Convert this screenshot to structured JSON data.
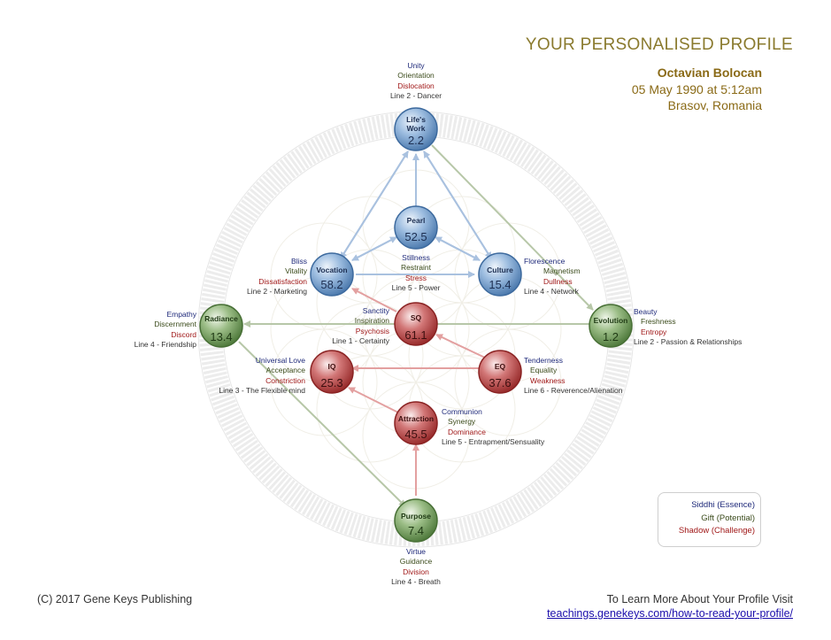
{
  "header": {
    "title": "YOUR PERSONALISED PROFILE",
    "name": "Octavian Bolocan",
    "birth": "05 May 1990 at 5:12am",
    "place": "Brasov, Romania"
  },
  "spheres": {
    "lifes_work": {
      "label": "Life's Work",
      "label_l1": "Life's",
      "label_l2": "Work",
      "value": "2.2",
      "color": "blue"
    },
    "pearl": {
      "label": "Pearl",
      "value": "52.5",
      "color": "blue"
    },
    "vocation": {
      "label": "Vocation",
      "value": "58.2",
      "color": "blue"
    },
    "culture": {
      "label": "Culture",
      "value": "15.4",
      "color": "blue"
    },
    "radiance": {
      "label": "Radiance",
      "value": "13.4",
      "color": "green"
    },
    "evolution": {
      "label": "Evolution",
      "value": "1.2",
      "color": "green"
    },
    "sq": {
      "label": "SQ",
      "value": "61.1",
      "color": "red"
    },
    "iq": {
      "label": "IQ",
      "value": "25.3",
      "color": "red"
    },
    "eq": {
      "label": "EQ",
      "value": "37.6",
      "color": "red"
    },
    "attraction": {
      "label": "Attraction",
      "value": "45.5",
      "color": "red"
    },
    "purpose": {
      "label": "Purpose",
      "value": "7.4",
      "color": "green"
    }
  },
  "labels": {
    "lifes_work": {
      "siddhi": "Unity",
      "gift": "Orientation",
      "shadow": "Dislocation",
      "line": "Line 2 - Dancer"
    },
    "pearl": {
      "siddhi": "Stillness",
      "gift": "Restraint",
      "shadow": "Stress",
      "line": "Line 5 - Power"
    },
    "vocation": {
      "siddhi": "Bliss",
      "gift": "Vitality",
      "shadow": "Dissatisfaction",
      "line": "Line 2 - Marketing"
    },
    "culture": {
      "siddhi": "Florescence",
      "gift": "Magnetism",
      "shadow": "Dullness",
      "line": "Line 4 - Network"
    },
    "radiance": {
      "siddhi": "Empathy",
      "gift": "Discernment",
      "shadow": "Discord",
      "line": "Line 4 - Friendship"
    },
    "evolution": {
      "siddhi": "Beauty",
      "gift": "Freshness",
      "shadow": "Entropy",
      "line": "Line 2 - Passion & Relationships"
    },
    "sq": {
      "siddhi": "Sanctity",
      "gift": "Inspiration",
      "shadow": "Psychosis",
      "line": "Line 1 - Certainty"
    },
    "iq": {
      "siddhi": "Universal Love",
      "gift": "Acceptance",
      "shadow": "Constriction",
      "line": "Line 3 - The Flexible mind"
    },
    "eq": {
      "siddhi": "Tenderness",
      "gift": "Equality",
      "shadow": "Weakness",
      "line": "Line 6 - Reverence/Alienation"
    },
    "attraction": {
      "siddhi": "Communion",
      "gift": "Synergy",
      "shadow": "Dominance",
      "line": "Line 5 - Entrapment/Sensuality"
    },
    "purpose": {
      "siddhi": "Virtue",
      "gift": "Guidance",
      "shadow": "Division",
      "line": "Line 4 - Breath"
    }
  },
  "legend": {
    "siddhi": "Siddhi (Essence)",
    "gift": "Gift (Potential)",
    "shadow": "Shadow (Challenge)"
  },
  "colors": {
    "siddhi": "#1f2a7a",
    "gift": "#3a4a1a",
    "shadow": "#a01818",
    "title": "#8a7a2e",
    "blue_sphere": "#6f9acc",
    "green_sphere": "#6e9a5c",
    "red_sphere": "#b84040"
  },
  "footer": {
    "copyright": "(C) 2017 Gene Keys Publishing",
    "learn_more": "To Learn More About Your Profile Visit",
    "link": "teachings.genekeys.com/how-to-read-your-profile/"
  }
}
